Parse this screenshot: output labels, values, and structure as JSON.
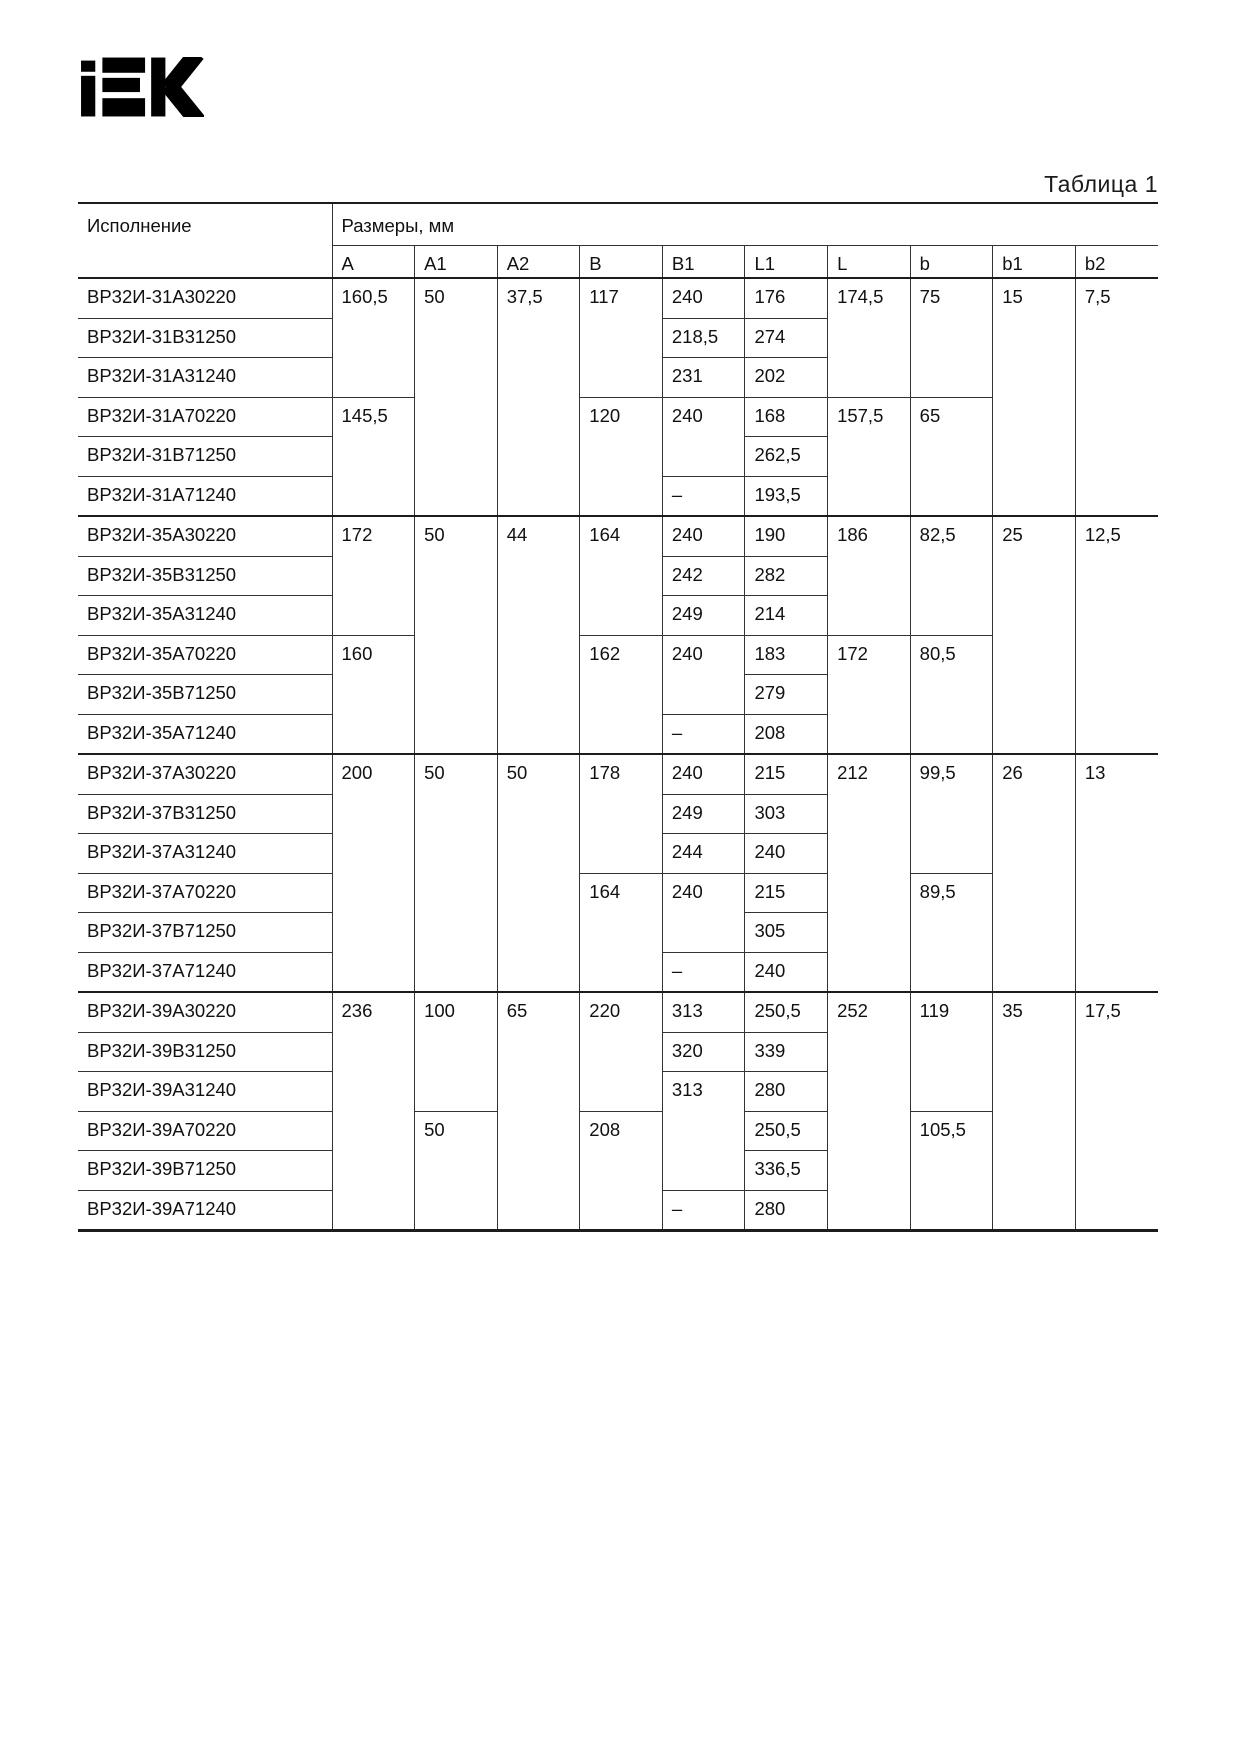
{
  "page": {
    "logo_text": "iEK",
    "table_caption": "Таблица 1"
  },
  "table": {
    "col_execution": "Исполнение",
    "col_dimensions": "Размеры, мм",
    "dim_headers": [
      "A",
      "A1",
      "A2",
      "B",
      "B1",
      "L1",
      "L",
      "b",
      "b1",
      "b2"
    ],
    "rows": [
      {
        "model": "ВР32И-31А30220",
        "group_start": true,
        "cells": [
          {
            "col": "A",
            "value": "160,5",
            "rowspan": 3
          },
          {
            "col": "A1",
            "value": "50",
            "rowspan": 6
          },
          {
            "col": "A2",
            "value": "37,5",
            "rowspan": 6
          },
          {
            "col": "B",
            "value": "117",
            "rowspan": 3
          },
          {
            "col": "B1",
            "value": "240",
            "rowspan": 1
          },
          {
            "col": "L1",
            "value": "176",
            "rowspan": 1
          },
          {
            "col": "L",
            "value": "174,5",
            "rowspan": 3
          },
          {
            "col": "b",
            "value": "75",
            "rowspan": 3
          },
          {
            "col": "b1",
            "value": "15",
            "rowspan": 6
          },
          {
            "col": "b2",
            "value": "7,5",
            "rowspan": 6
          }
        ]
      },
      {
        "model": "ВР32И-31В31250",
        "cells": [
          {
            "col": "B1",
            "value": "218,5",
            "rowspan": 1
          },
          {
            "col": "L1",
            "value": "274",
            "rowspan": 1
          }
        ]
      },
      {
        "model": "ВР32И-31А31240",
        "cells": [
          {
            "col": "B1",
            "value": "231",
            "rowspan": 1
          },
          {
            "col": "L1",
            "value": "202",
            "rowspan": 1
          }
        ]
      },
      {
        "model": "ВР32И-31А70220",
        "cells": [
          {
            "col": "A",
            "value": "145,5",
            "rowspan": 3
          },
          {
            "col": "B",
            "value": "120",
            "rowspan": 3
          },
          {
            "col": "B1",
            "value": "240",
            "rowspan": 2
          },
          {
            "col": "L1",
            "value": "168",
            "rowspan": 1
          },
          {
            "col": "L",
            "value": "157,5",
            "rowspan": 3
          },
          {
            "col": "b",
            "value": "65",
            "rowspan": 3
          }
        ]
      },
      {
        "model": "ВР32И-31В71250",
        "cells": [
          {
            "col": "L1",
            "value": "262,5",
            "rowspan": 1
          }
        ]
      },
      {
        "model": "ВР32И-31А71240",
        "cells": [
          {
            "col": "B1",
            "value": "–",
            "rowspan": 1
          },
          {
            "col": "L1",
            "value": "193,5",
            "rowspan": 1
          }
        ]
      },
      {
        "model": "ВР32И-35А30220",
        "group_start": true,
        "cells": [
          {
            "col": "A",
            "value": "172",
            "rowspan": 3
          },
          {
            "col": "A1",
            "value": "50",
            "rowspan": 6
          },
          {
            "col": "A2",
            "value": "44",
            "rowspan": 6
          },
          {
            "col": "B",
            "value": "164",
            "rowspan": 3
          },
          {
            "col": "B1",
            "value": "240",
            "rowspan": 1
          },
          {
            "col": "L1",
            "value": "190",
            "rowspan": 1
          },
          {
            "col": "L",
            "value": "186",
            "rowspan": 3
          },
          {
            "col": "b",
            "value": "82,5",
            "rowspan": 3
          },
          {
            "col": "b1",
            "value": "25",
            "rowspan": 6
          },
          {
            "col": "b2",
            "value": "12,5",
            "rowspan": 6
          }
        ]
      },
      {
        "model": "ВР32И-35В31250",
        "cells": [
          {
            "col": "B1",
            "value": "242",
            "rowspan": 1
          },
          {
            "col": "L1",
            "value": "282",
            "rowspan": 1
          }
        ]
      },
      {
        "model": "ВР32И-35А31240",
        "cells": [
          {
            "col": "B1",
            "value": "249",
            "rowspan": 1
          },
          {
            "col": "L1",
            "value": "214",
            "rowspan": 1
          }
        ]
      },
      {
        "model": "ВР32И-35А70220",
        "cells": [
          {
            "col": "A",
            "value": "160",
            "rowspan": 3
          },
          {
            "col": "B",
            "value": "162",
            "rowspan": 3
          },
          {
            "col": "B1",
            "value": "240",
            "rowspan": 2
          },
          {
            "col": "L1",
            "value": "183",
            "rowspan": 1
          },
          {
            "col": "L",
            "value": "172",
            "rowspan": 3
          },
          {
            "col": "b",
            "value": "80,5",
            "rowspan": 3
          }
        ]
      },
      {
        "model": "ВР32И-35В71250",
        "cells": [
          {
            "col": "L1",
            "value": "279",
            "rowspan": 1
          }
        ]
      },
      {
        "model": "ВР32И-35А71240",
        "cells": [
          {
            "col": "B1",
            "value": "–",
            "rowspan": 1
          },
          {
            "col": "L1",
            "value": "208",
            "rowspan": 1
          }
        ]
      },
      {
        "model": "ВР32И-37А30220",
        "group_start": true,
        "cells": [
          {
            "col": "A",
            "value": "200",
            "rowspan": 6
          },
          {
            "col": "A1",
            "value": "50",
            "rowspan": 6
          },
          {
            "col": "A2",
            "value": "50",
            "rowspan": 6
          },
          {
            "col": "B",
            "value": "178",
            "rowspan": 3
          },
          {
            "col": "B1",
            "value": "240",
            "rowspan": 1
          },
          {
            "col": "L1",
            "value": "215",
            "rowspan": 1
          },
          {
            "col": "L",
            "value": "212",
            "rowspan": 6
          },
          {
            "col": "b",
            "value": "99,5",
            "rowspan": 3
          },
          {
            "col": "b1",
            "value": "26",
            "rowspan": 6
          },
          {
            "col": "b2",
            "value": "13",
            "rowspan": 6
          }
        ]
      },
      {
        "model": "ВР32И-37В31250",
        "cells": [
          {
            "col": "B1",
            "value": "249",
            "rowspan": 1
          },
          {
            "col": "L1",
            "value": "303",
            "rowspan": 1
          }
        ]
      },
      {
        "model": "ВР32И-37А31240",
        "cells": [
          {
            "col": "B1",
            "value": "244",
            "rowspan": 1
          },
          {
            "col": "L1",
            "value": "240",
            "rowspan": 1
          }
        ]
      },
      {
        "model": "ВР32И-37А70220",
        "cells": [
          {
            "col": "B",
            "value": "164",
            "rowspan": 3
          },
          {
            "col": "B1",
            "value": "240",
            "rowspan": 2
          },
          {
            "col": "L1",
            "value": "215",
            "rowspan": 1
          },
          {
            "col": "b",
            "value": "89,5",
            "rowspan": 3
          }
        ]
      },
      {
        "model": "ВР32И-37В71250",
        "cells": [
          {
            "col": "L1",
            "value": "305",
            "rowspan": 1
          }
        ]
      },
      {
        "model": "ВР32И-37А71240",
        "cells": [
          {
            "col": "B1",
            "value": "–",
            "rowspan": 1
          },
          {
            "col": "L1",
            "value": "240",
            "rowspan": 1
          }
        ]
      },
      {
        "model": "ВР32И-39А30220",
        "group_start": true,
        "cells": [
          {
            "col": "A",
            "value": "236",
            "rowspan": 6
          },
          {
            "col": "A1",
            "value": "100",
            "rowspan": 3
          },
          {
            "col": "A2",
            "value": "65",
            "rowspan": 6
          },
          {
            "col": "B",
            "value": "220",
            "rowspan": 3
          },
          {
            "col": "B1",
            "value": "313",
            "rowspan": 1
          },
          {
            "col": "L1",
            "value": "250,5",
            "rowspan": 1
          },
          {
            "col": "L",
            "value": "252",
            "rowspan": 6
          },
          {
            "col": "b",
            "value": "119",
            "rowspan": 3
          },
          {
            "col": "b1",
            "value": "35",
            "rowspan": 6
          },
          {
            "col": "b2",
            "value": "17,5",
            "rowspan": 6
          }
        ]
      },
      {
        "model": "ВР32И-39В31250",
        "cells": [
          {
            "col": "B1",
            "value": "320",
            "rowspan": 1
          },
          {
            "col": "L1",
            "value": "339",
            "rowspan": 1
          }
        ]
      },
      {
        "model": "ВР32И-39А31240",
        "cells": [
          {
            "col": "B1",
            "value": "313",
            "rowspan": 3
          },
          {
            "col": "L1",
            "value": "280",
            "rowspan": 1
          }
        ]
      },
      {
        "model": "ВР32И-39А70220",
        "cells": [
          {
            "col": "A1",
            "value": "50",
            "rowspan": 3
          },
          {
            "col": "B",
            "value": "208",
            "rowspan": 3
          },
          {
            "col": "L1",
            "value": "250,5",
            "rowspan": 1
          },
          {
            "col": "b",
            "value": "105,5",
            "rowspan": 3
          }
        ]
      },
      {
        "model": "ВР32И-39В71250",
        "cells": [
          {
            "col": "L1",
            "value": "336,5",
            "rowspan": 1
          }
        ]
      },
      {
        "model": "ВР32И-39А71240",
        "cells": [
          {
            "col": "B1",
            "value": "–",
            "rowspan": 1
          },
          {
            "col": "L1",
            "value": "280",
            "rowspan": 1
          }
        ]
      }
    ]
  }
}
